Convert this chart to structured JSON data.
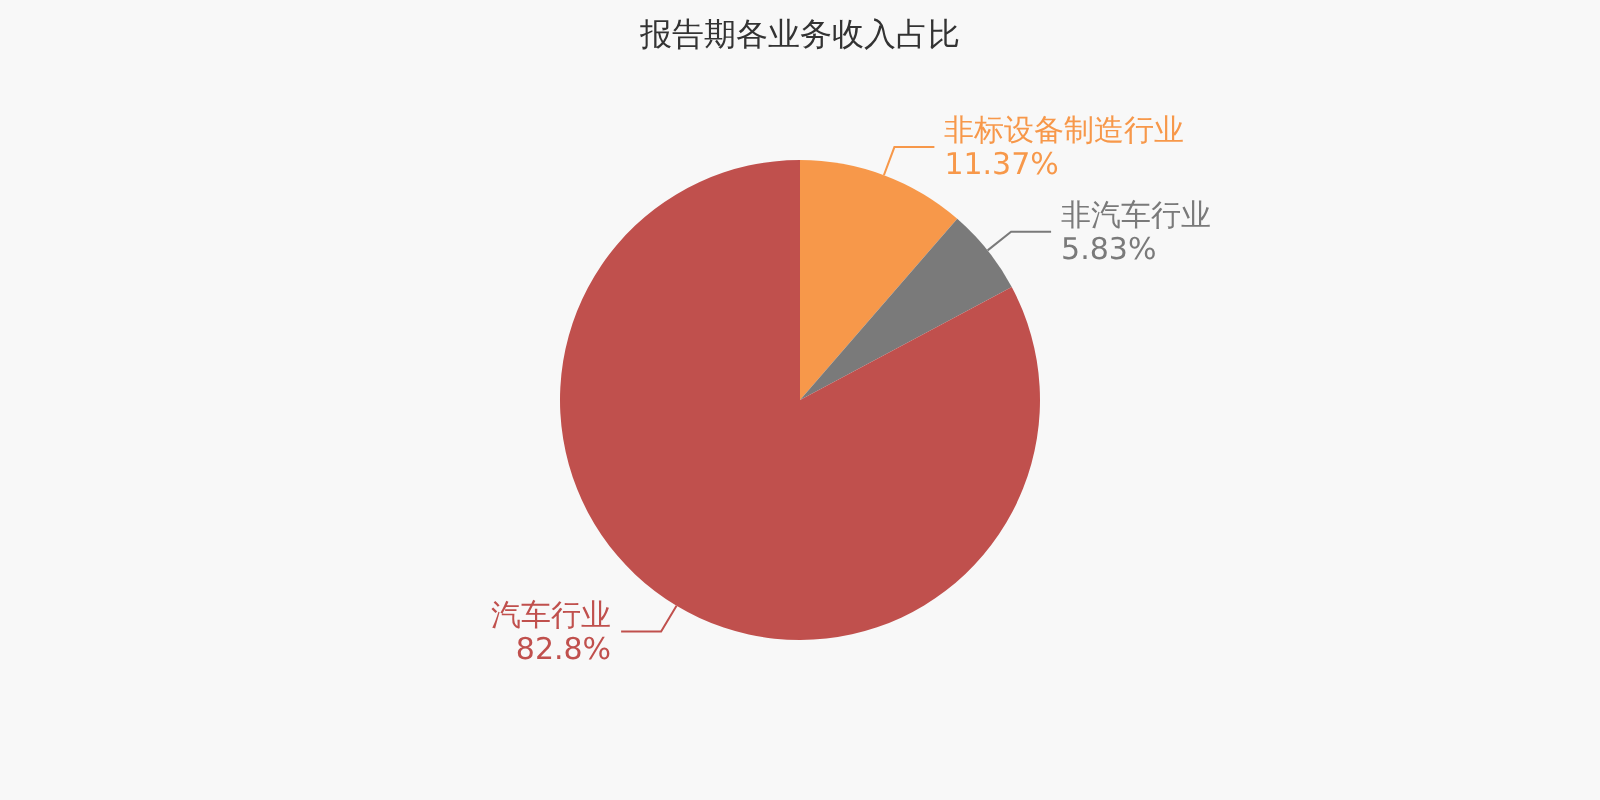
{
  "chart_data": {
    "type": "pie",
    "title": "报告期各业务收入占比",
    "categories": [
      "非标设备制造行业",
      "非汽车行业",
      "汽车行业"
    ],
    "values": [
      11.37,
      5.83,
      82.8
    ],
    "colors": [
      "#f7984a",
      "#7a7a7a",
      "#c0504d"
    ],
    "value_labels": [
      "11.37%",
      "5.83%",
      "82.8%"
    ],
    "legend": false
  }
}
